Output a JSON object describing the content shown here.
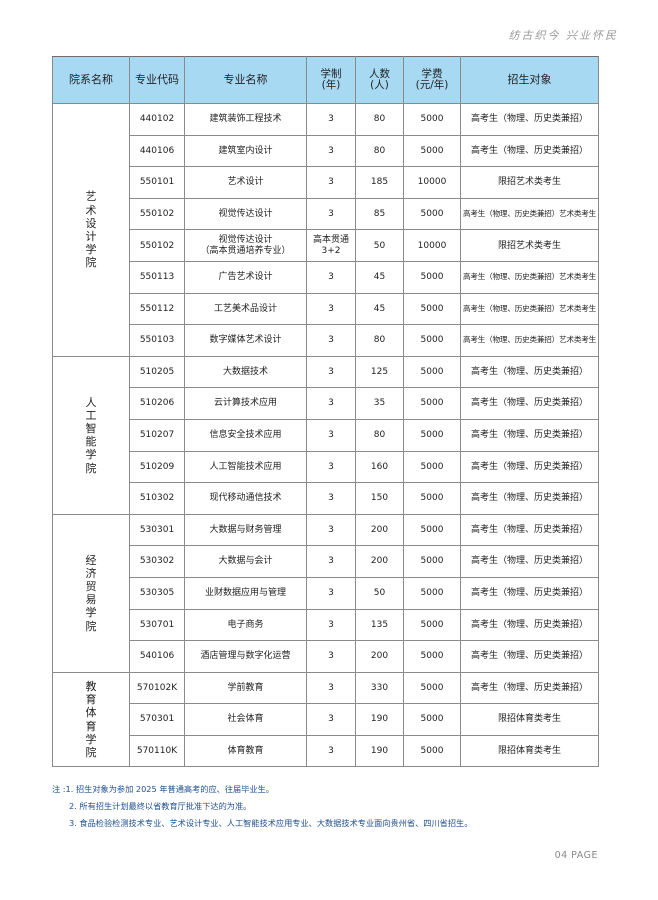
{
  "slogan": "纺古织今  兴业怀民",
  "table": {
    "headers": [
      "院系名称",
      "专业代码",
      "专业名称",
      "学制\n(年)",
      "人数\n(人)",
      "学费\n(元/年)",
      "招生对象"
    ],
    "groups": [
      {
        "dept": "艺术设计学院",
        "rows": [
          [
            "440102",
            "建筑装饰工程技术",
            "3",
            "80",
            "5000",
            "高考生（物理、历史类兼招）"
          ],
          [
            "440106",
            "建筑室内设计",
            "3",
            "80",
            "5000",
            "高考生（物理、历史类兼招）"
          ],
          [
            "550101",
            "艺术设计",
            "3",
            "185",
            "10000",
            "限招艺术类考生"
          ],
          [
            "550102",
            "视觉传达设计",
            "3",
            "85",
            "5000",
            "高考生（物理、历史类兼招）艺术类考生"
          ],
          [
            "550102",
            "视觉传达设计\n（高本贯通培养专业）",
            "高本贯通\n3+2",
            "50",
            "10000",
            "限招艺术类考生"
          ],
          [
            "550113",
            "广告艺术设计",
            "3",
            "45",
            "5000",
            "高考生（物理、历史类兼招）艺术类考生"
          ],
          [
            "550112",
            "工艺美术品设计",
            "3",
            "45",
            "5000",
            "高考生（物理、历史类兼招）艺术类考生"
          ],
          [
            "550103",
            "数字媒体艺术设计",
            "3",
            "80",
            "5000",
            "高考生（物理、历史类兼招）艺术类考生"
          ]
        ]
      },
      {
        "dept": "人工智能学院",
        "rows": [
          [
            "510205",
            "大数据技术",
            "3",
            "125",
            "5000",
            "高考生（物理、历史类兼招）"
          ],
          [
            "510206",
            "云计算技术应用",
            "3",
            "35",
            "5000",
            "高考生（物理、历史类兼招）"
          ],
          [
            "510207",
            "信息安全技术应用",
            "3",
            "80",
            "5000",
            "高考生（物理、历史类兼招）"
          ],
          [
            "510209",
            "人工智能技术应用",
            "3",
            "160",
            "5000",
            "高考生（物理、历史类兼招）"
          ],
          [
            "510302",
            "现代移动通信技术",
            "3",
            "150",
            "5000",
            "高考生（物理、历史类兼招）"
          ]
        ]
      },
      {
        "dept": "经济贸易学院",
        "rows": [
          [
            "530301",
            "大数据与财务管理",
            "3",
            "200",
            "5000",
            "高考生（物理、历史类兼招）"
          ],
          [
            "530302",
            "大数据与会计",
            "3",
            "200",
            "5000",
            "高考生（物理、历史类兼招）"
          ],
          [
            "530305",
            "业财数据应用与管理",
            "3",
            "50",
            "5000",
            "高考生（物理、历史类兼招）"
          ],
          [
            "530701",
            "电子商务",
            "3",
            "135",
            "5000",
            "高考生（物理、历史类兼招）"
          ],
          [
            "540106",
            "酒店管理与数字化运营",
            "3",
            "200",
            "5000",
            "高考生（物理、历史类兼招）"
          ]
        ]
      },
      {
        "dept": "教育体育学院",
        "rows": [
          [
            "570102K",
            "学前教育",
            "3",
            "330",
            "5000",
            "高考生（物理、历史类兼招）"
          ],
          [
            "570301",
            "社会体育",
            "3",
            "190",
            "5000",
            "限招体育类考生"
          ],
          [
            "570110K",
            "体育教育",
            "3",
            "190",
            "5000",
            "限招体育类考生"
          ]
        ]
      }
    ]
  },
  "notes": [
    "注 :1. 招生对象为参加 2025 年普通高考的应、往届毕业生。",
    "2. 所有招生计划最终以省教育厅批准下达的为准。",
    "3. 食品检验检测技术专业、艺术设计专业、人工智能技术应用专业、大数据技术专业面向贵州省、四川省招生。"
  ],
  "page_label": "04  PAGE"
}
